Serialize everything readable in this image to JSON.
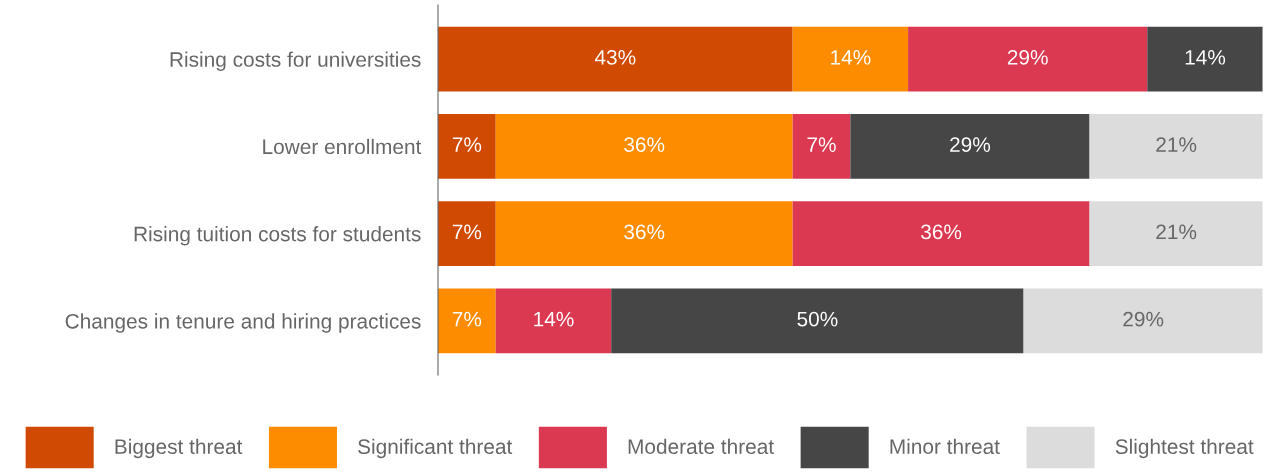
{
  "chart_data": {
    "type": "bar",
    "orientation": "horizontal",
    "stacked": true,
    "categories": [
      "Rising costs for universities",
      "Lower enrollment",
      "Rising tuition costs for students",
      "Changes in tenure and hiring practices"
    ],
    "xlim": [
      0,
      100
    ],
    "tick_labels": "y",
    "grid": false,
    "legend": "bottom",
    "series": [
      {
        "name": "Biggest threat",
        "color": "#d04a02",
        "values": [
          43,
          7,
          7,
          null
        ],
        "value_labels": [
          "43%",
          "7%",
          "7%",
          null
        ]
      },
      {
        "name": "Significant threat",
        "color": "#fd8c00",
        "values": [
          14,
          36,
          36,
          7
        ],
        "value_labels": [
          "14%",
          "36%",
          "36%",
          "7%"
        ]
      },
      {
        "name": "Moderate threat",
        "color": "#db3952",
        "values": [
          29,
          7,
          36,
          14
        ],
        "value_labels": [
          "29%",
          "7%",
          "36%",
          "14%"
        ]
      },
      {
        "name": "Minor threat",
        "color": "#464646",
        "values": [
          14,
          29,
          null,
          50
        ],
        "value_labels": [
          "14%",
          "29%",
          null,
          "50%"
        ]
      },
      {
        "name": "Slightest threat",
        "color": "#dcdcdc",
        "values": [
          null,
          21,
          21,
          29
        ],
        "value_labels": [
          null,
          "21%",
          "21%",
          "29%"
        ]
      }
    ]
  }
}
